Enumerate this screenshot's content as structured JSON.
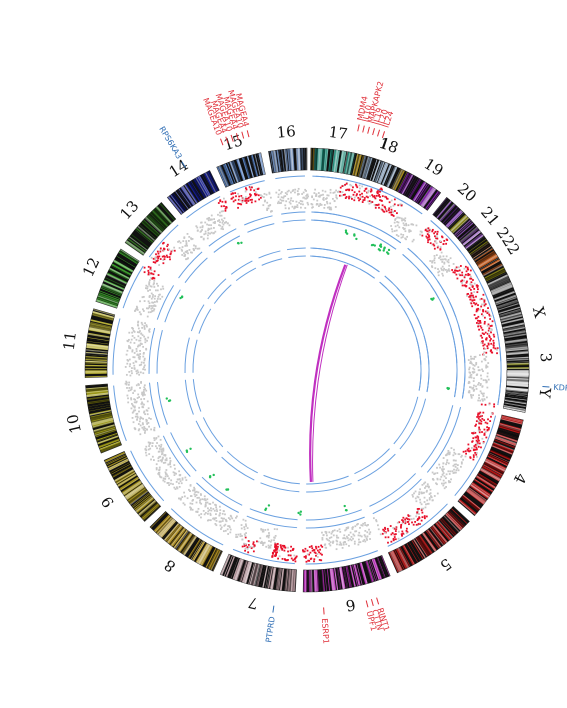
{
  "chromosomes": [
    {
      "label": "1",
      "color": "#a88a1c"
    },
    {
      "label": "2",
      "color": "#7c7a12"
    },
    {
      "label": "3",
      "color": "#7a7d18"
    },
    {
      "label": "4",
      "color": "#b01414"
    },
    {
      "label": "5",
      "color": "#a81a1a"
    },
    {
      "label": "6",
      "color": "#b42fb4"
    },
    {
      "label": "7",
      "color": "#b09298"
    },
    {
      "label": "8",
      "color": "#a98a22"
    },
    {
      "label": "9",
      "color": "#a08e1e"
    },
    {
      "label": "10",
      "color": "#9a9618"
    },
    {
      "label": "11",
      "color": "#b8b038"
    },
    {
      "label": "12",
      "color": "#3a9a2a"
    },
    {
      "label": "13",
      "color": "#2e6a1e"
    },
    {
      "label": "14",
      "color": "#141c88"
    },
    {
      "label": "15",
      "color": "#5a82c0"
    },
    {
      "label": "16",
      "color": "#6a86b0"
    },
    {
      "label": "17",
      "color": "#1e8a78"
    },
    {
      "label": "18",
      "color": "#8aa0b8"
    },
    {
      "label": "19",
      "color": "#7a1ea0"
    },
    {
      "label": "20",
      "color": "#7030a0"
    },
    {
      "label": "21",
      "color": "#8a50b0"
    },
    {
      "label": "22",
      "color": "#bc5a20"
    },
    {
      "label": "X",
      "color": "#888888"
    },
    {
      "label": "Y",
      "color": "#cfcfcf"
    }
  ],
  "genes": [
    {
      "label": "MAGEA10",
      "color": "#e0303a"
    },
    {
      "label": "MAGEA4",
      "color": "#e0303a"
    },
    {
      "label": "MAGEA10",
      "color": "#e0303a"
    },
    {
      "label": "MAGEA4",
      "color": "#e0303a"
    },
    {
      "label": "MAGEA10",
      "color": "#e0303a"
    },
    {
      "label": "MAGEA4",
      "color": "#e0303a"
    },
    {
      "label": "RPS6KA3",
      "color": "#2e6db4"
    },
    {
      "label": "MDM4",
      "color": "#e0303a"
    },
    {
      "label": "IL10",
      "color": "#e0303a"
    },
    {
      "label": "MAPKAPK2",
      "color": "#e0303a"
    },
    {
      "label": "IL19",
      "color": "#e0303a"
    },
    {
      "label": "IL20",
      "color": "#e0303a"
    },
    {
      "label": "IL24",
      "color": "#e0303a"
    },
    {
      "label": "KDR",
      "color": "#2e6db4"
    },
    {
      "label": "RINT1",
      "color": "#e0303a"
    },
    {
      "label": "CTTN",
      "color": "#e0303a"
    },
    {
      "label": "UPF1",
      "color": "#e0303a"
    },
    {
      "label": "ESRP1",
      "color": "#e0303a"
    },
    {
      "label": "PTPRD",
      "color": "#2e6db4"
    }
  ],
  "colors": {
    "ring_line": "#6aa0e0",
    "cnv_gain": "#e8102a",
    "cnv_neutral": "#c8c8c8",
    "snv": "#22c05a",
    "link": "#c030c0"
  }
}
